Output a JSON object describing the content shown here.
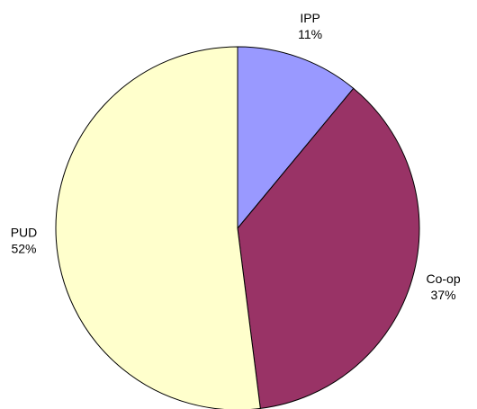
{
  "chart_data": {
    "type": "pie",
    "categories": [
      "IPP",
      "Co-op",
      "PUD"
    ],
    "values": [
      11,
      37,
      52
    ],
    "value_labels": [
      "11%",
      "37%",
      "52%"
    ],
    "colors": [
      "#9999ff",
      "#993366",
      "#ffffcc"
    ]
  }
}
